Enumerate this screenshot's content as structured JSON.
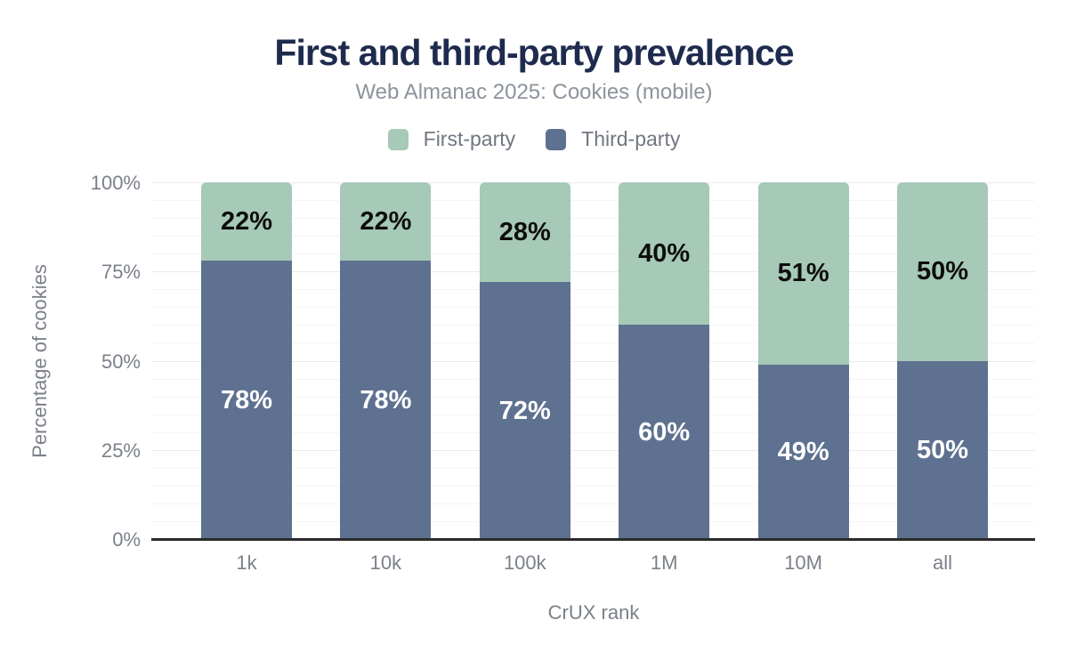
{
  "header": {
    "title": "First and third-party prevalence",
    "subtitle": "Web Almanac 2025: Cookies (mobile)"
  },
  "legend": [
    {
      "label": "First-party",
      "color": "#a6c9b8"
    },
    {
      "label": "Third-party",
      "color": "#5f7190"
    }
  ],
  "colors": {
    "title": "#1e2b4e",
    "subtitle_text": "#8c939c",
    "axis_text": "#7b8089",
    "axis_line": "#2b2b2b",
    "first_party": "#a6c9b8",
    "third_party": "#5f7190",
    "label_on_green": "#0d0d0d",
    "label_on_blue": "#ffffff"
  },
  "chart_data": {
    "type": "bar",
    "stacked": true,
    "title": "First and third-party prevalence",
    "subtitle": "Web Almanac 2025: Cookies (mobile)",
    "xlabel": "CrUX rank",
    "ylabel": "Percentage of cookies",
    "categories": [
      "1k",
      "10k",
      "100k",
      "1M",
      "10M",
      "all"
    ],
    "series": [
      {
        "name": "First-party",
        "color": "#a6c9b8",
        "values": [
          22,
          22,
          28,
          40,
          51,
          50
        ],
        "labels": [
          "22%",
          "22%",
          "28%",
          "40%",
          "51%",
          "50%"
        ],
        "label_color": "#0d0d0d",
        "stack_position": "top"
      },
      {
        "name": "Third-party",
        "color": "#5f7190",
        "values": [
          78,
          78,
          72,
          60,
          49,
          50
        ],
        "labels": [
          "78%",
          "78%",
          "72%",
          "60%",
          "49%",
          "50%"
        ],
        "label_color": "#ffffff",
        "stack_position": "bottom"
      }
    ],
    "ylim": [
      0,
      100
    ],
    "y_ticks": [
      {
        "value": 0,
        "label": "0%"
      },
      {
        "value": 25,
        "label": "25%"
      },
      {
        "value": 50,
        "label": "50%"
      },
      {
        "value": 75,
        "label": "75%"
      },
      {
        "value": 100,
        "label": "100%"
      }
    ],
    "grid": {
      "minor_step": 5,
      "major_step": 25,
      "visible": true
    },
    "legend_position": "top",
    "value_suffix": "%"
  }
}
